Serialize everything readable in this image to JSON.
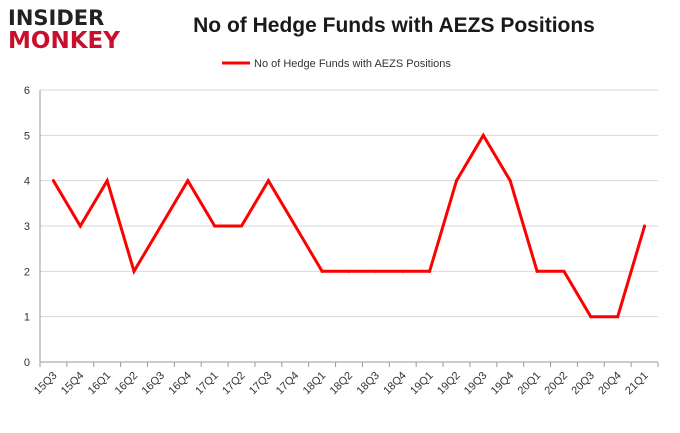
{
  "logo": {
    "line1": "INSIDER",
    "line2": "MONKEY"
  },
  "colors": {
    "series": "#ff0000",
    "grid": "#d9d9d9",
    "axis": "#999999",
    "logo_red": "#c8102e"
  },
  "chart_data": {
    "type": "line",
    "title": "No of Hedge Funds with AEZS Positions",
    "xlabel": "",
    "ylabel": "",
    "ylim": [
      0,
      6
    ],
    "yticks": [
      0,
      1,
      2,
      3,
      4,
      5,
      6
    ],
    "grid": "horizontal",
    "legend_position": "top-center",
    "categories": [
      "15Q3",
      "15Q4",
      "16Q1",
      "16Q2",
      "16Q3",
      "16Q4",
      "17Q1",
      "17Q2",
      "17Q3",
      "17Q4",
      "18Q1",
      "18Q2",
      "18Q3",
      "18Q4",
      "19Q1",
      "19Q2",
      "19Q3",
      "19Q4",
      "20Q1",
      "20Q2",
      "20Q3",
      "20Q4",
      "21Q1"
    ],
    "series": [
      {
        "name": "No of Hedge Funds with AEZS Positions",
        "values": [
          4,
          3,
          4,
          2,
          3,
          4,
          3,
          3,
          4,
          3,
          2,
          2,
          2,
          2,
          2,
          4,
          5,
          4,
          2,
          2,
          1,
          1,
          3
        ]
      }
    ]
  }
}
